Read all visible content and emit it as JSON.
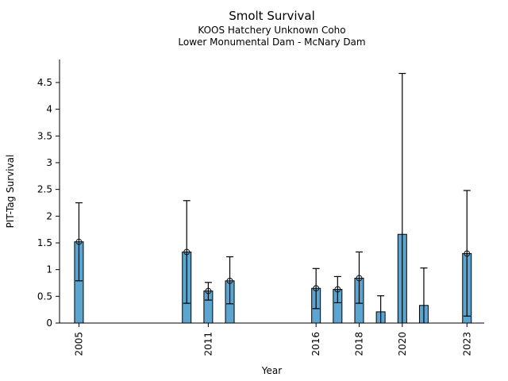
{
  "figure": {
    "background": "#ffffff"
  },
  "chart_data": {
    "type": "bar",
    "title": "Smolt Survival",
    "subtitle1": "KOOS Hatchery Unknown Coho",
    "subtitle2": "Lower Monumental Dam - McNary Dam",
    "xlabel": "Year",
    "ylabel": "PIT-Tag Survival",
    "bar_color": "#5BA5D0",
    "edge_color": "#000000",
    "grid": false,
    "legend": "none",
    "xlim": [
      2004.1,
      2023.8
    ],
    "ylim": [
      0,
      4.93
    ],
    "yticks": [
      0,
      0.5,
      1,
      1.5,
      2,
      2.5,
      3,
      3.5,
      4,
      4.5
    ],
    "xticks": [
      2005,
      2011,
      2016,
      2018,
      2020,
      2023
    ],
    "points": [
      {
        "year": 2005,
        "value": 1.52,
        "ci_low": 0.79,
        "ci_high": 2.25,
        "marker": true
      },
      {
        "year": 2010,
        "value": 1.33,
        "ci_low": 0.37,
        "ci_high": 2.29,
        "marker": true
      },
      {
        "year": 2011,
        "value": 0.6,
        "ci_low": 0.43,
        "ci_high": 0.76,
        "marker": true
      },
      {
        "year": 2012,
        "value": 0.79,
        "ci_low": 0.36,
        "ci_high": 1.24,
        "marker": true
      },
      {
        "year": 2016,
        "value": 0.65,
        "ci_low": 0.27,
        "ci_high": 1.02,
        "marker": true
      },
      {
        "year": 2017,
        "value": 0.63,
        "ci_low": 0.38,
        "ci_high": 0.87,
        "marker": true
      },
      {
        "year": 2018,
        "value": 0.84,
        "ci_low": 0.37,
        "ci_high": 1.33,
        "marker": true
      },
      {
        "year": 2019,
        "value": 0.21,
        "ci_low": 0.0,
        "ci_high": 0.51,
        "marker": false
      },
      {
        "year": 2020,
        "value": 1.66,
        "ci_low": 0.0,
        "ci_high": 4.67,
        "marker": false
      },
      {
        "year": 2021,
        "value": 0.33,
        "ci_low": 0.0,
        "ci_high": 1.03,
        "marker": false
      },
      {
        "year": 2023,
        "value": 1.3,
        "ci_low": 0.13,
        "ci_high": 2.48,
        "marker": true
      }
    ]
  }
}
